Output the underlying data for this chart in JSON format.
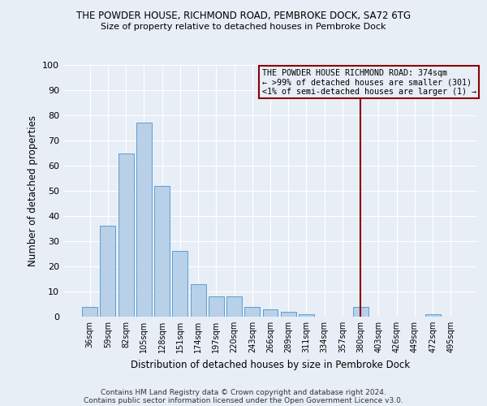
{
  "title": "THE POWDER HOUSE, RICHMOND ROAD, PEMBROKE DOCK, SA72 6TG",
  "subtitle": "Size of property relative to detached houses in Pembroke Dock",
  "xlabel": "Distribution of detached houses by size in Pembroke Dock",
  "ylabel": "Number of detached properties",
  "categories": [
    "36sqm",
    "59sqm",
    "82sqm",
    "105sqm",
    "128sqm",
    "151sqm",
    "174sqm",
    "197sqm",
    "220sqm",
    "243sqm",
    "266sqm",
    "289sqm",
    "311sqm",
    "334sqm",
    "357sqm",
    "380sqm",
    "403sqm",
    "426sqm",
    "449sqm",
    "472sqm",
    "495sqm"
  ],
  "values": [
    4,
    36,
    65,
    77,
    52,
    26,
    13,
    8,
    8,
    4,
    3,
    2,
    1,
    0,
    0,
    4,
    0,
    0,
    0,
    1,
    0
  ],
  "bar_color": "#b8d0e8",
  "bar_edge_color": "#5a9fd4",
  "bg_color": "#e8eef6",
  "grid_color": "#ffffff",
  "vline_color": "#8b0000",
  "box_text_line1": "THE POWDER HOUSE RICHMOND ROAD: 374sqm",
  "box_text_line2": "← >99% of detached houses are smaller (301)",
  "box_text_line3": "<1% of semi-detached houses are larger (1) →",
  "box_edge_color": "#8b0000",
  "footer_line1": "Contains HM Land Registry data © Crown copyright and database right 2024.",
  "footer_line2": "Contains public sector information licensed under the Open Government Licence v3.0.",
  "ylim": [
    0,
    100
  ],
  "yticks": [
    0,
    10,
    20,
    30,
    40,
    50,
    60,
    70,
    80,
    90,
    100
  ]
}
